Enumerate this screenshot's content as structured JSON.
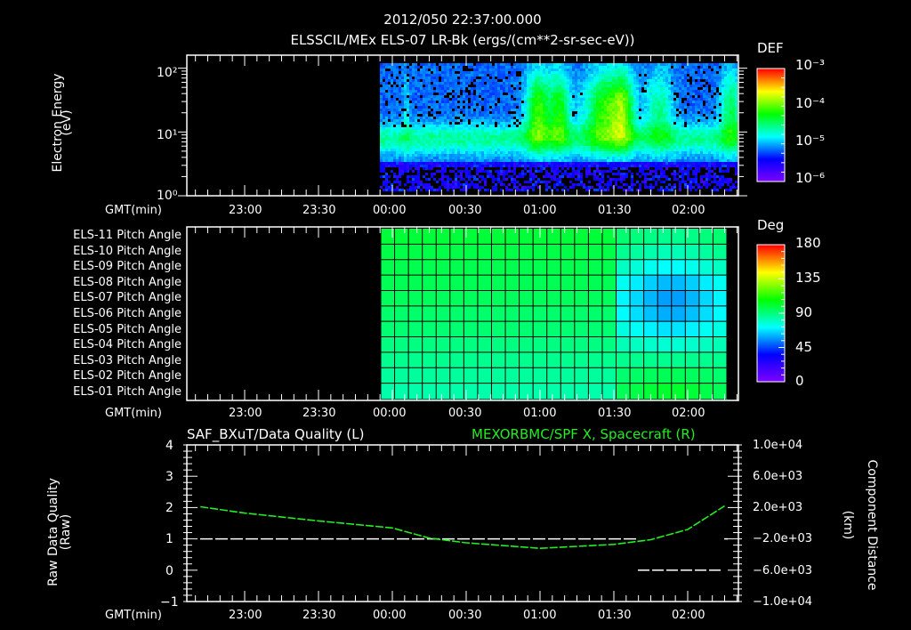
{
  "header": {
    "timestamp": "2012/050 22:37:00.000",
    "subtitle": "ELSSCIL/MEx ELS-07 LR-Bk  (ergs/(cm**2-sr-sec-eV))"
  },
  "colors": {
    "background": "#000000",
    "axis": "#ffffff",
    "spacecraft_line": "#22ee22",
    "quality_line": "#ffffff"
  },
  "time_axis": {
    "label": "GMT(min)",
    "ticks": [
      "23:00",
      "23:30",
      "00:00",
      "00:30",
      "01:00",
      "01:30",
      "02:00"
    ]
  },
  "panels": {
    "energy": {
      "ylabel_line1": "Electron Energy",
      "ylabel_line2": "(eV)",
      "yticks": [
        "10²",
        "10¹",
        "10⁰"
      ],
      "colorbar_title": "DEF",
      "colorbar_ticks": [
        "10⁻³",
        "10⁻⁴",
        "10⁻⁵",
        "10⁻⁶"
      ]
    },
    "pitch": {
      "rows": [
        "ELS-11 Pitch Angle",
        "ELS-10 Pitch Angle",
        "ELS-09 Pitch Angle",
        "ELS-08 Pitch Angle",
        "ELS-07 Pitch Angle",
        "ELS-06 Pitch Angle",
        "ELS-05 Pitch Angle",
        "ELS-04 Pitch Angle",
        "ELS-03 Pitch Angle",
        "ELS-02 Pitch Angle",
        "ELS-01 Pitch Angle"
      ],
      "colorbar_title": "Deg",
      "colorbar_ticks": [
        "180",
        "135",
        "90",
        "45",
        "0"
      ]
    },
    "quality": {
      "title_left": "SAF_BXuT/Data Quality (L)",
      "title_right": "MEXORBMC/SPF X, Spacecraft (R)",
      "ylabel_left_line1": "Raw Data Quality",
      "ylabel_left_line2": "(Raw)",
      "yticks_left": [
        "4",
        "3",
        "2",
        "1",
        "0",
        "−1"
      ],
      "ylabel_right_line1": "Component Distance",
      "ylabel_right_line2": "(km)",
      "yticks_right": [
        "1.0e+04",
        "6.0e+03",
        "2.0e+03",
        "−2.0e+03",
        "−6.0e+03",
        "−1.0e+04"
      ]
    }
  },
  "chart_data": [
    {
      "type": "heatmap",
      "title": "ELSSCIL/MEx ELS-07 LR-Bk (ergs/(cm**2-sr-sec-eV))",
      "xlabel": "GMT(min)",
      "ylabel": "Electron Energy (eV)",
      "yscale": "log",
      "ylim": [
        1,
        150
      ],
      "xlim": [
        "22:37",
        "02:20"
      ],
      "data_start": "23:57",
      "x_ticks": [
        "23:00",
        "23:30",
        "00:00",
        "00:30",
        "01:00",
        "01:30",
        "02:00"
      ],
      "colorbar": {
        "label": "DEF",
        "range": [
          1e-06,
          0.001
        ],
        "scale": "log"
      },
      "notes": "Persistent band ~5-10 eV near 1e-5; enhanced fluxes (~1e-4) 10-100 eV between ~00:55 and ~01:45 and ~02:10-02:20"
    },
    {
      "type": "heatmap",
      "title": "ELS Pitch Angle",
      "xlabel": "GMT(min)",
      "categories": [
        "ELS-11",
        "ELS-10",
        "ELS-09",
        "ELS-08",
        "ELS-07",
        "ELS-06",
        "ELS-05",
        "ELS-04",
        "ELS-03",
        "ELS-02",
        "ELS-01"
      ],
      "colorbar": {
        "label": "Deg",
        "range": [
          0,
          180
        ]
      },
      "x_ticks": [
        "23:00",
        "23:30",
        "00:00",
        "00:30",
        "01:00",
        "01:30",
        "02:00"
      ],
      "values_summary": {
        "23:57-01:27": [
          100,
          98,
          97,
          96,
          95,
          93,
          92,
          90,
          88,
          86,
          84
        ],
        "01:27-02:17": [
          88,
          82,
          72,
          62,
          58,
          60,
          68,
          78,
          88,
          96,
          102
        ]
      }
    },
    {
      "type": "line",
      "title_left": "SAF_BXuT/Data Quality (L)",
      "title_right": "MEXORBMC/SPF X, Spacecraft (R)",
      "xlabel": "GMT(min)",
      "ylabel": "Raw Data Quality (Raw)",
      "ylabel_right": "Component Distance (km)",
      "ylim": [
        -1,
        4
      ],
      "ylim_right": [
        -10000,
        10000
      ],
      "x": [
        "22:42",
        "23:00",
        "23:30",
        "00:00",
        "00:15",
        "00:30",
        "01:00",
        "01:30",
        "01:45",
        "02:00",
        "02:15"
      ],
      "series": [
        {
          "name": "Data Quality (L)",
          "axis": "left",
          "values": [
            1,
            1,
            1,
            1,
            1,
            1,
            1,
            1,
            0,
            0,
            0
          ]
        },
        {
          "name": "Spacecraft X (R)",
          "axis": "right",
          "values": [
            2100,
            1300,
            300,
            -600,
            -1900,
            -2500,
            -3200,
            -2700,
            -2100,
            -800,
            2200
          ]
        }
      ]
    }
  ]
}
